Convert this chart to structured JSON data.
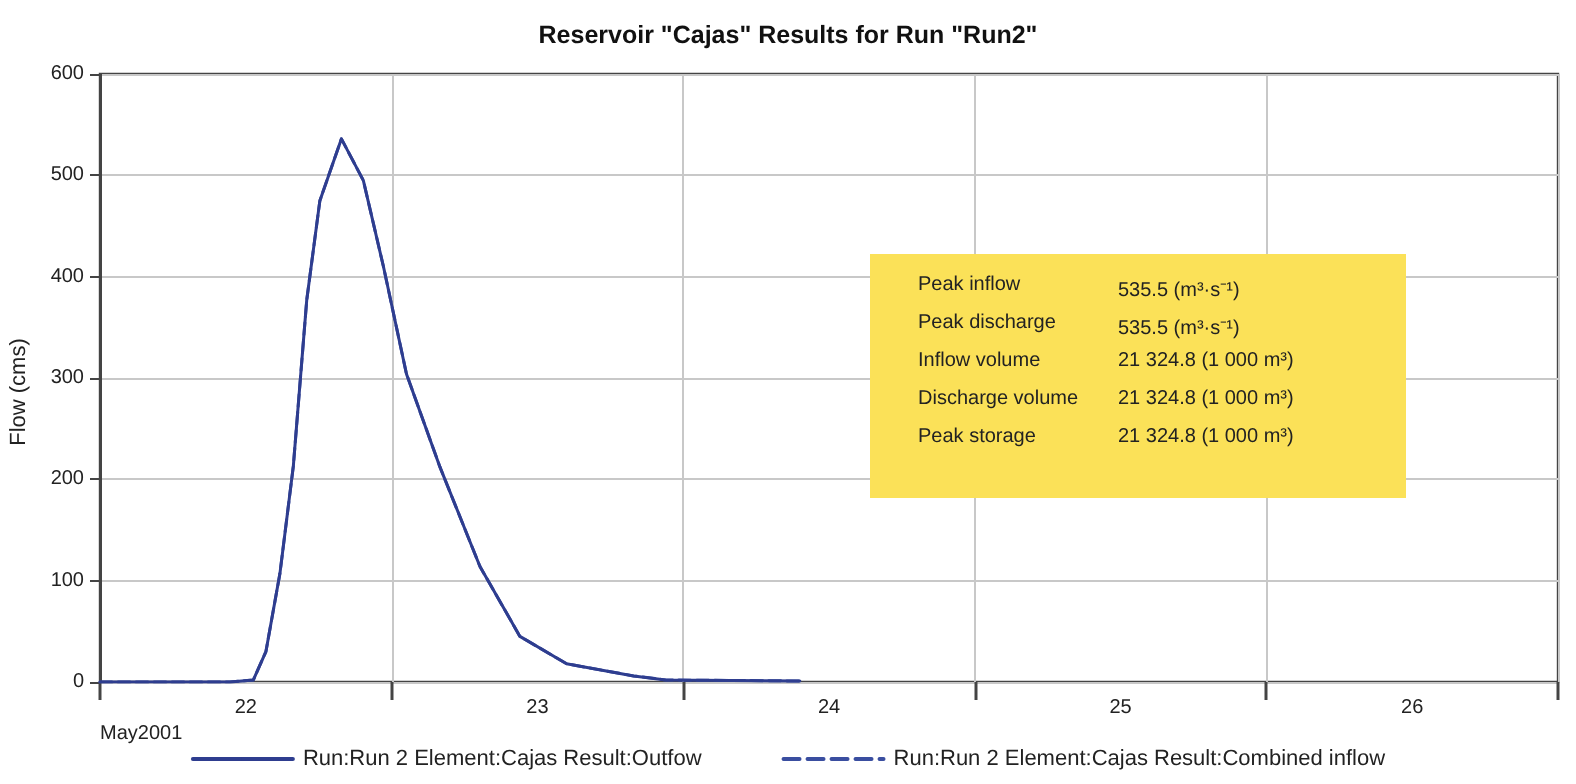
{
  "chart_data": {
    "type": "line",
    "title": "Reservoir \"Cajas\" Results for Run \"Run2\"",
    "xlabel": "May2001",
    "ylabel": "Flow (cms)",
    "x": [
      22,
      22.446,
      22.526,
      22.569,
      22.617,
      22.663,
      22.709,
      22.754,
      22.828,
      22.903,
      22.972,
      23.051,
      23.166,
      23.303,
      23.44,
      23.6,
      23.83,
      23.94,
      24.4
    ],
    "series": [
      {
        "name": "Run:Run 2 Element:Cajas Result:Outfow",
        "color": "#2e3d8f",
        "line_style": "solid",
        "values": [
          0,
          0,
          2,
          30,
          107,
          213,
          377,
          475,
          536,
          495,
          410,
          304,
          212,
          114,
          45,
          18,
          6,
          2,
          1
        ]
      },
      {
        "name": "Run:Run 2 Element:Cajas Result:Combined inflow",
        "color": "#3a4ea0",
        "line_style": "dashed",
        "values": [
          0,
          0,
          2,
          30,
          107,
          213,
          377,
          475,
          536,
          495,
          410,
          304,
          212,
          114,
          45,
          18,
          6,
          2,
          1
        ]
      }
    ],
    "xlim": [
      22,
      27
    ],
    "xticks": [
      {
        "value": 22,
        "label": null
      },
      {
        "value": 22.5,
        "label": "22"
      },
      {
        "value": 23,
        "label": null
      },
      {
        "value": 23.5,
        "label": "23"
      },
      {
        "value": 24,
        "label": null
      },
      {
        "value": 24.5,
        "label": "24"
      },
      {
        "value": 25,
        "label": null
      },
      {
        "value": 25.5,
        "label": "25"
      },
      {
        "value": 26,
        "label": null
      },
      {
        "value": 26.5,
        "label": "26"
      },
      {
        "value": 27,
        "label": null
      }
    ],
    "ylim": [
      0,
      600
    ],
    "yticks": [
      0,
      100,
      200,
      300,
      400,
      500,
      600
    ],
    "grid": true,
    "legend": "bottom",
    "marker": "none",
    "annotations": [
      "Peak inflow",
      "535.5 (m³·s⁻¹)",
      "Peak discharge",
      "535.5 (m³·s⁻¹)",
      "Inflow volume",
      "21 324.8 (1 000 m³)",
      "Discharge volume",
      "21 324.8 (1 000 m³)",
      "Peak storage",
      "21 324.8 (1 000 m³)"
    ]
  }
}
